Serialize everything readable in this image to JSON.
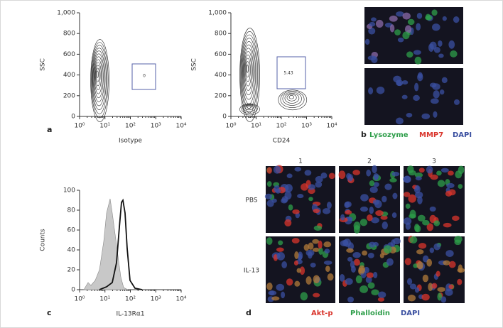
{
  "panel_a": {
    "label": "a",
    "plots": [
      {
        "x_label": "Isotype",
        "y_label": "SSC",
        "gate_label": "0",
        "x_log": true,
        "xlim": [
          1,
          10000
        ],
        "xticks": [
          {
            "value": 1,
            "label": "10⁰"
          },
          {
            "value": 10,
            "label": "10¹"
          },
          {
            "value": 100,
            "label": "10²"
          },
          {
            "value": 1000,
            "label": "10³"
          },
          {
            "value": 10000,
            "label": "10⁴"
          }
        ],
        "ylim": [
          0,
          1000
        ],
        "yticks": [
          0,
          200,
          400,
          600,
          800,
          {
            "value": 1000,
            "label": "1,000"
          }
        ]
      },
      {
        "x_label": "CD24",
        "y_label": "SSC",
        "gate_label": "5.43",
        "x_log": true,
        "xlim": [
          1,
          10000
        ],
        "xticks": [
          {
            "value": 1,
            "label": "10⁰"
          },
          {
            "value": 10,
            "label": "10¹"
          },
          {
            "value": 100,
            "label": "10²"
          },
          {
            "value": 1000,
            "label": "10³"
          },
          {
            "value": 10000,
            "label": "10⁴"
          }
        ],
        "ylim": [
          0,
          1000
        ],
        "yticks": [
          0,
          200,
          400,
          600,
          800,
          {
            "value": 1000,
            "label": "1,000"
          }
        ]
      }
    ]
  },
  "panel_b": {
    "label": "b",
    "stains": [
      {
        "name": "Lysozyme",
        "color": "#2e9e4a"
      },
      {
        "name": "MMP7",
        "color": "#d9342b"
      },
      {
        "name": "DAPI",
        "color": "#3a4fa0"
      }
    ]
  },
  "panel_c": {
    "label": "c",
    "x_label": "IL-13Rα1",
    "y_label": "Counts",
    "x_log": true,
    "xlim": [
      1,
      10000
    ],
    "xticks": [
      {
        "value": 1,
        "label": "10⁰"
      },
      {
        "value": 10,
        "label": "10¹"
      },
      {
        "value": 100,
        "label": "10²"
      },
      {
        "value": 1000,
        "label": "10³"
      },
      {
        "value": 10000,
        "label": "10⁴"
      }
    ],
    "ylim": [
      0,
      100
    ],
    "yticks": [
      0,
      20,
      40,
      60,
      80,
      100
    ]
  },
  "panel_d": {
    "label": "d",
    "columns": [
      "1",
      "2",
      "3"
    ],
    "rows": [
      "PBS",
      "IL-13"
    ],
    "stains": [
      {
        "name": "Akt-p",
        "color": "#d9342b"
      },
      {
        "name": "Phalloidin",
        "color": "#2e9e4a"
      },
      {
        "name": "DAPI",
        "color": "#3a4fa0"
      }
    ]
  }
}
